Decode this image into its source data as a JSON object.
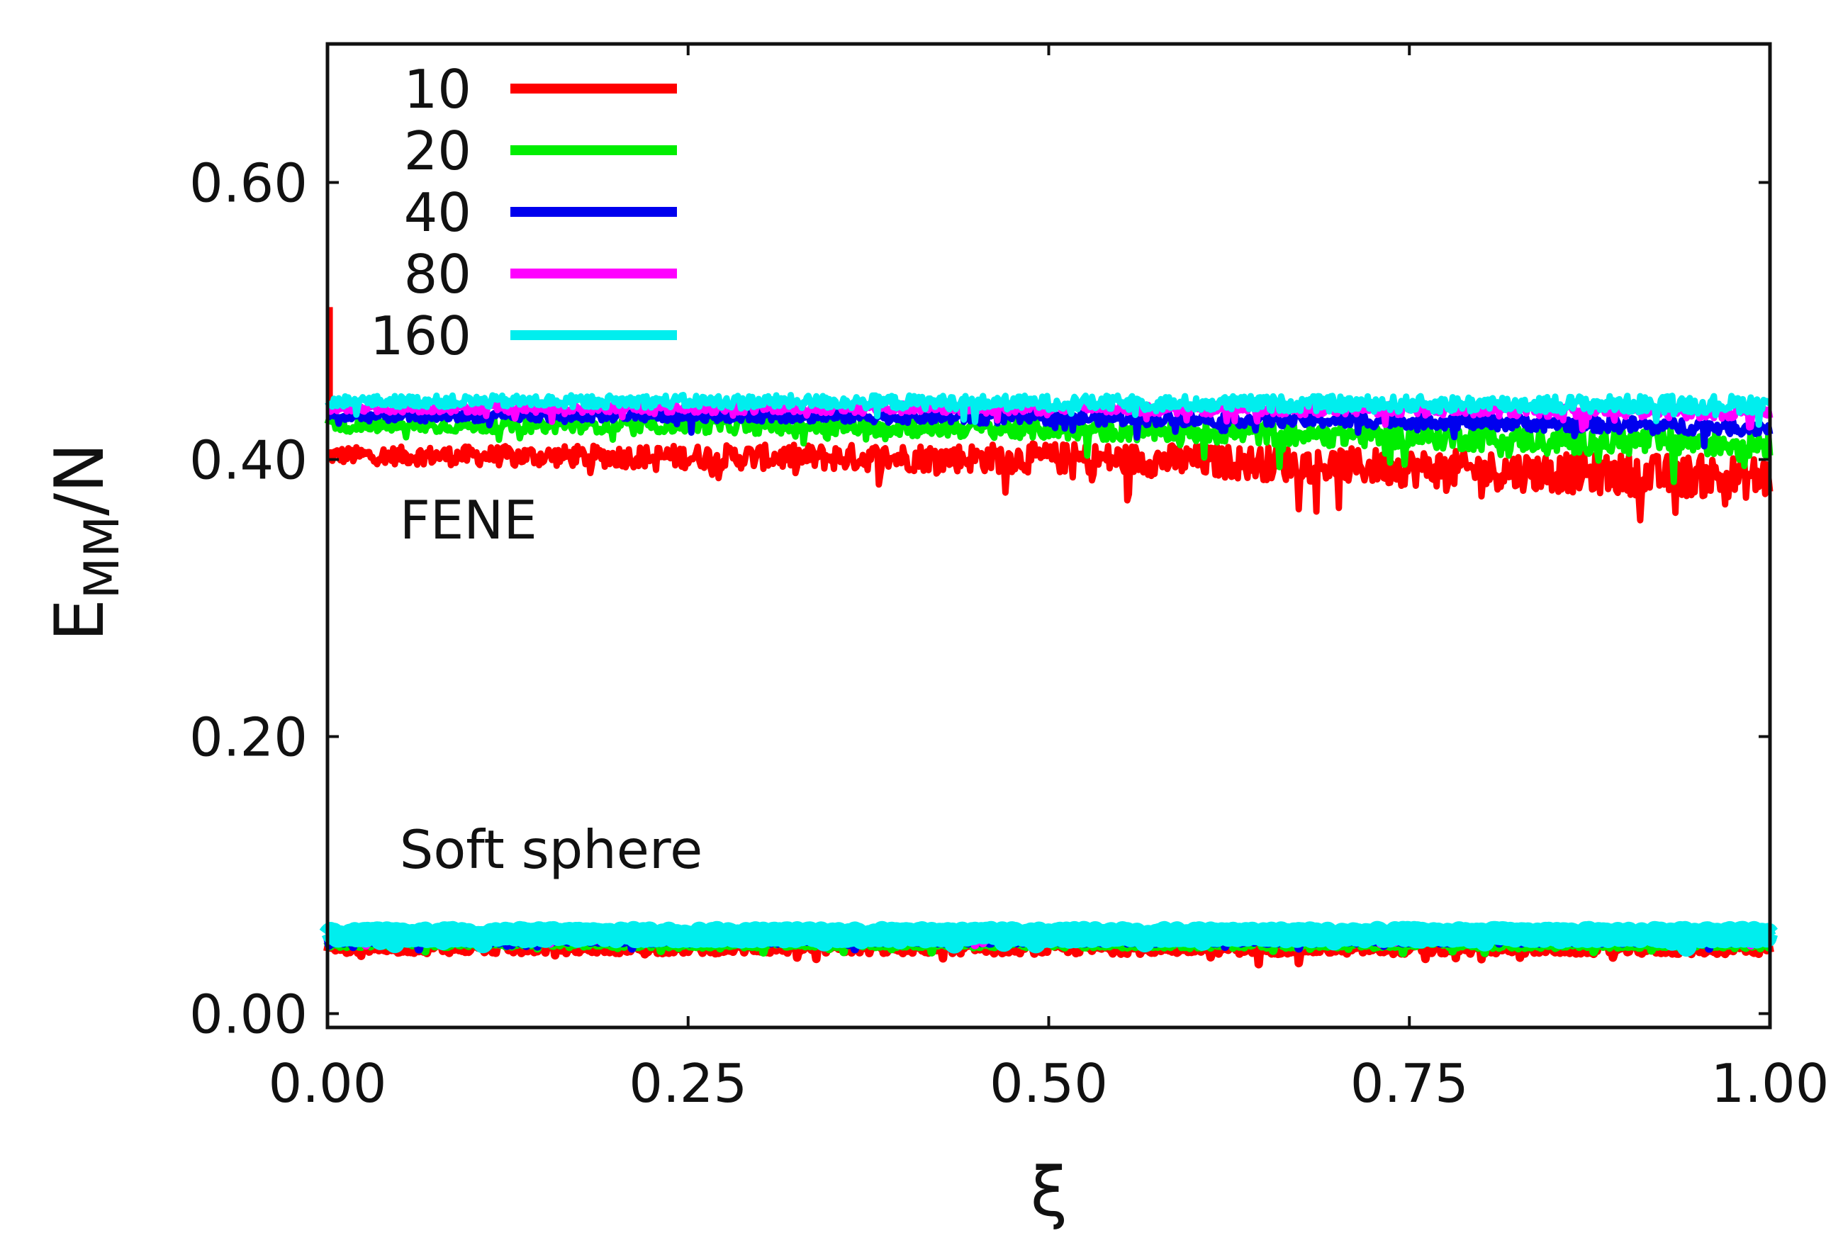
{
  "chart_data": {
    "type": "line",
    "title": "",
    "xlabel": "ξ",
    "ylabel": {
      "main": "E",
      "sub": "MM",
      "suffix": "/N"
    },
    "xlim": [
      0,
      1
    ],
    "ylim": [
      -0.01,
      0.7
    ],
    "x_ticks": [
      {
        "value": 0.0,
        "label": "0.00"
      },
      {
        "value": 0.25,
        "label": "0.25"
      },
      {
        "value": 0.5,
        "label": "0.50"
      },
      {
        "value": 0.75,
        "label": "0.75"
      },
      {
        "value": 1.0,
        "label": "1.00"
      }
    ],
    "y_ticks": [
      {
        "value": 0.0,
        "label": "0.00"
      },
      {
        "value": 0.2,
        "label": "0.20"
      },
      {
        "value": 0.4,
        "label": "0.40"
      },
      {
        "value": 0.6,
        "label": "0.60"
      }
    ],
    "grid": false,
    "legend_position": "top-left",
    "annotations": [
      {
        "text": "FENE",
        "x": 0.05,
        "y": 0.343
      },
      {
        "text": "Soft sphere",
        "x": 0.05,
        "y": 0.105
      }
    ],
    "series": [
      {
        "name": "10",
        "color": "#ff0000",
        "noise": 0.006,
        "fene": {
          "x": [
            0,
            0.01,
            0.25,
            0.5,
            0.6,
            0.75,
            0.9,
            1.0
          ],
          "y": [
            0.403,
            0.403,
            0.402,
            0.401,
            0.399,
            0.394,
            0.389,
            0.387
          ]
        },
        "fene_spike": {
          "x": 0.002,
          "y_min": 0.44,
          "y_max": 0.51
        },
        "soft": {
          "x": [
            0,
            1.0
          ],
          "y": [
            0.048,
            0.047
          ]
        }
      },
      {
        "name": "20",
        "color": "#00ee00",
        "noise": 0.004,
        "fene": {
          "x": [
            0,
            0.01,
            0.25,
            0.5,
            0.75,
            0.9,
            1.0
          ],
          "y": [
            0.428,
            0.424,
            0.425,
            0.422,
            0.417,
            0.413,
            0.412
          ]
        },
        "soft": {
          "x": [
            0,
            1.0
          ],
          "y": [
            0.051,
            0.05
          ]
        }
      },
      {
        "name": "40",
        "color": "#0000ee",
        "noise": 0.0035,
        "fene": {
          "x": [
            0,
            0.01,
            0.25,
            0.5,
            0.75,
            0.9,
            1.0
          ],
          "y": [
            0.432,
            0.431,
            0.432,
            0.43,
            0.428,
            0.425,
            0.423
          ]
        },
        "soft": {
          "x": [
            0,
            1.0
          ],
          "y": [
            0.053,
            0.053
          ]
        }
      },
      {
        "name": "80",
        "color": "#ff00ff",
        "noise": 0.003,
        "fene": {
          "x": [
            0,
            0.25,
            0.5,
            0.75,
            1.0
          ],
          "y": [
            0.437,
            0.437,
            0.437,
            0.436,
            0.434
          ]
        },
        "soft": {
          "x": [
            0,
            1.0
          ],
          "y": [
            0.055,
            0.055
          ]
        }
      },
      {
        "name": "160",
        "color": "#00eeee",
        "noise": 0.004,
        "fene": {
          "x": [
            0,
            0.25,
            0.5,
            0.75,
            1.0
          ],
          "y": [
            0.442,
            0.442,
            0.441,
            0.44,
            0.44
          ]
        },
        "soft": {
          "x": [
            0,
            1.0
          ],
          "y": [
            0.057,
            0.057
          ]
        }
      }
    ]
  }
}
